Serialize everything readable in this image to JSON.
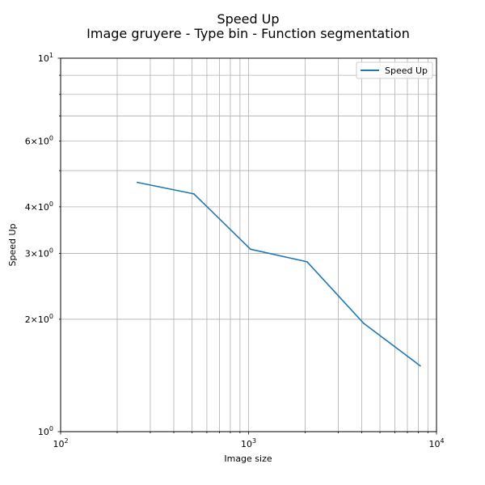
{
  "chart_data": {
    "type": "line",
    "title": "Speed Up",
    "subtitle": "Image gruyere - Type bin - Function segmentation",
    "xlabel": "Image size",
    "ylabel": "Speed Up",
    "xscale": "log",
    "yscale": "log",
    "xlim": [
      100,
      10000
    ],
    "ylim": [
      1,
      10
    ],
    "grid": true,
    "grid_which": "both",
    "legend_position": "top-right",
    "series": [
      {
        "name": "Speed Up",
        "color": "#1f77b4",
        "x": [
          256,
          512,
          1024,
          2048,
          4096,
          8192
        ],
        "y": [
          4.65,
          4.33,
          3.08,
          2.85,
          1.95,
          1.5
        ]
      }
    ],
    "x_tick_labels": [
      {
        "value": 100,
        "base": "10",
        "exp": "2"
      },
      {
        "value": 1000,
        "base": "10",
        "exp": "3"
      },
      {
        "value": 10000,
        "base": "10",
        "exp": "4"
      }
    ],
    "y_tick_labels": [
      {
        "value": 1,
        "mant": "",
        "base": "10",
        "exp": "0"
      },
      {
        "value": 2,
        "mant": "2×",
        "base": "10",
        "exp": "0"
      },
      {
        "value": 3,
        "mant": "3×",
        "base": "10",
        "exp": "0"
      },
      {
        "value": 4,
        "mant": "4×",
        "base": "10",
        "exp": "0"
      },
      {
        "value": 6,
        "mant": "6×",
        "base": "10",
        "exp": "0"
      },
      {
        "value": 10,
        "mant": "",
        "base": "10",
        "exp": "1"
      }
    ]
  }
}
